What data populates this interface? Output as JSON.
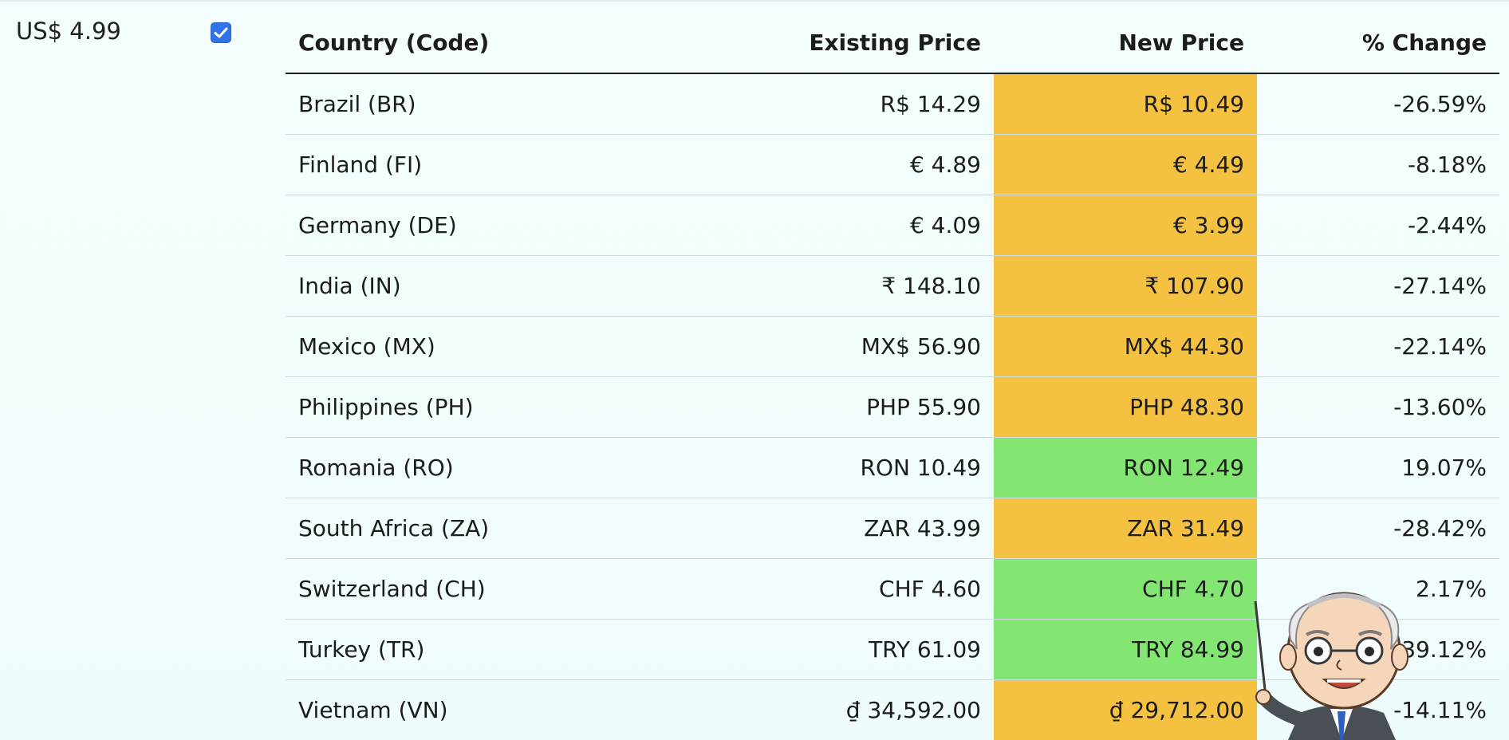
{
  "base_price": "US$ 4.99",
  "table": {
    "headers": {
      "country": "Country (Code)",
      "existing": "Existing Price",
      "new": "New Price",
      "change": "% Change"
    },
    "rows": [
      {
        "country": "Brazil (BR)",
        "existing": "R$ 14.29",
        "new": "R$ 10.49",
        "change": "-26.59%",
        "trend": "decrease"
      },
      {
        "country": "Finland (FI)",
        "existing": "€ 4.89",
        "new": "€ 4.49",
        "change": "-8.18%",
        "trend": "decrease"
      },
      {
        "country": "Germany (DE)",
        "existing": "€ 4.09",
        "new": "€ 3.99",
        "change": "-2.44%",
        "trend": "decrease"
      },
      {
        "country": "India (IN)",
        "existing": "₹ 148.10",
        "new": "₹ 107.90",
        "change": "-27.14%",
        "trend": "decrease"
      },
      {
        "country": "Mexico (MX)",
        "existing": "MX$ 56.90",
        "new": "MX$ 44.30",
        "change": "-22.14%",
        "trend": "decrease"
      },
      {
        "country": "Philippines (PH)",
        "existing": "PHP 55.90",
        "new": "PHP 48.30",
        "change": "-13.60%",
        "trend": "decrease"
      },
      {
        "country": "Romania (RO)",
        "existing": "RON 10.49",
        "new": "RON 12.49",
        "change": "19.07%",
        "trend": "increase"
      },
      {
        "country": "South Africa (ZA)",
        "existing": "ZAR 43.99",
        "new": "ZAR 31.49",
        "change": "-28.42%",
        "trend": "decrease"
      },
      {
        "country": "Switzerland (CH)",
        "existing": "CHF 4.60",
        "new": "CHF 4.70",
        "change": "2.17%",
        "trend": "increase"
      },
      {
        "country": "Turkey (TR)",
        "existing": "TRY 61.09",
        "new": "TRY 84.99",
        "change": "39.12%",
        "trend": "increase"
      },
      {
        "country": "Vietnam (VN)",
        "existing": "₫ 34,592.00",
        "new": "₫ 29,712.00",
        "change": "-14.11%",
        "trend": "decrease"
      }
    ]
  },
  "colors": {
    "decrease": "#f5c140",
    "increase": "#84e672",
    "checkbox": "#2f73e6"
  },
  "checkbox": {
    "checked": true,
    "icon": "check-icon"
  },
  "mascot": {
    "icon": "professor-mascot-icon"
  }
}
